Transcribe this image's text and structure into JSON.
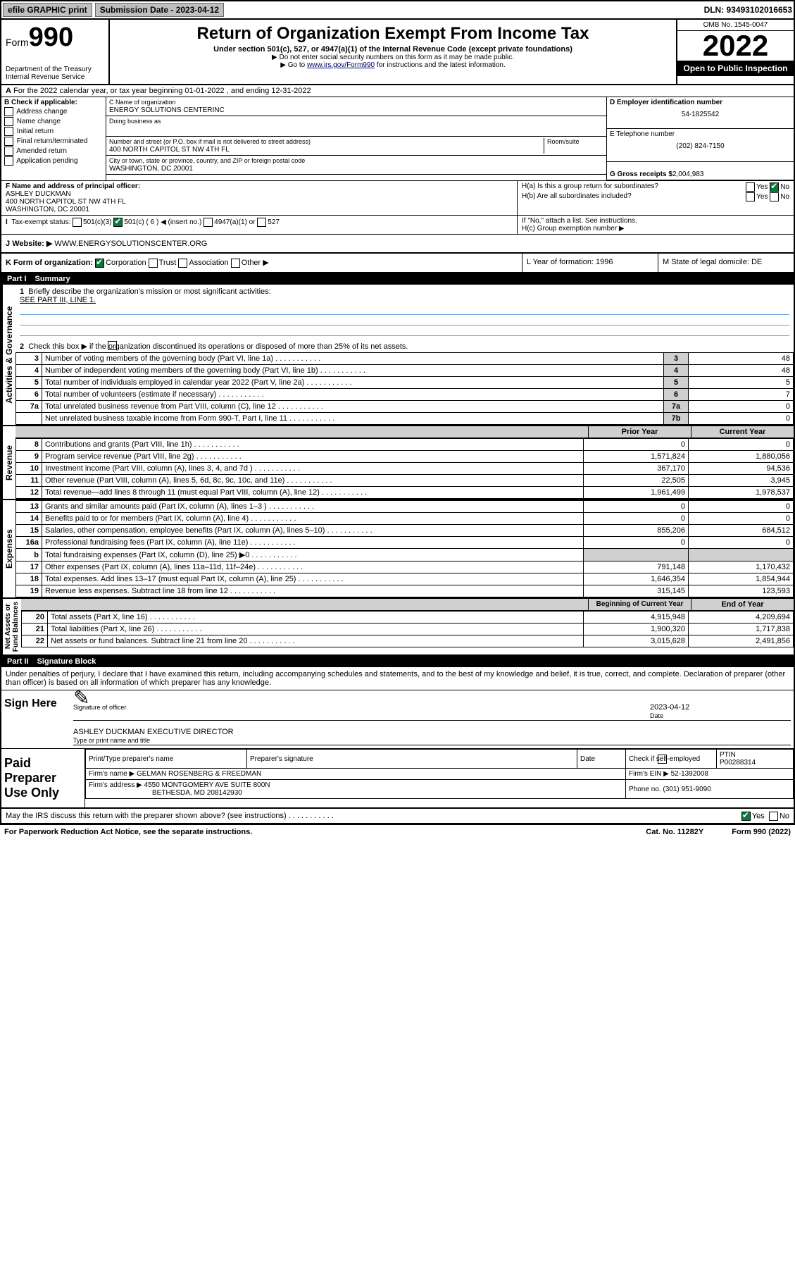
{
  "top": {
    "efile": "efile GRAPHIC print",
    "subLabel": "Submission Date - 2023-04-12",
    "dln": "DLN: 93493102016653"
  },
  "hdr": {
    "formWord": "Form",
    "formNum": "990",
    "dept": "Department of the Treasury\nInternal Revenue Service",
    "title": "Return of Organization Exempt From Income Tax",
    "sub": "Under section 501(c), 527, or 4947(a)(1) of the Internal Revenue Code (except private foundations)",
    "line1": "▶ Do not enter social security numbers on this form as it may be made public.",
    "line2a": "▶ Go to ",
    "line2link": "www.irs.gov/Form990",
    "line2b": " for instructions and the latest information.",
    "omb": "OMB No. 1545-0047",
    "year": "2022",
    "open": "Open to Public Inspection"
  },
  "rowA": {
    "text": "For the 2022 calendar year, or tax year beginning 01-01-2022    , and ending 12-31-2022",
    "a": "A"
  },
  "colB": {
    "hdr": "B Check if applicable:",
    "items": [
      "Address change",
      "Name change",
      "Initial return",
      "Final return/terminated",
      "Amended return",
      "Application pending"
    ]
  },
  "colC": {
    "nameLbl": "C Name of organization",
    "name": "ENERGY SOLUTIONS CENTERINC",
    "dba": "Doing business as",
    "streetLbl": "Number and street (or P.O. box if mail is not delivered to street address)",
    "roomLbl": "Room/suite",
    "street": "400 NORTH CAPITOL ST NW 4TH FL",
    "cityLbl": "City or town, state or province, country, and ZIP or foreign postal code",
    "city": "WASHINGTON, DC  20001",
    "fLbl": "F  Name and address of principal officer:",
    "fName": "ASHLEY DUCKMAN",
    "fAddr1": "400 NORTH CAPITOL ST NW 4TH FL",
    "fAddr2": "WASHINGTON, DC  20001"
  },
  "colD": {
    "einLbl": "D Employer identification number",
    "ein": "54-1825542",
    "telLbl": "E Telephone number",
    "tel": "(202) 824-7150",
    "grossLbl": "G Gross receipts $",
    "gross": "2,004,983"
  },
  "rowH": {
    "ha": "H(a)  Is this a group return for subordinates?",
    "yes": "Yes",
    "no": "No",
    "hb": "H(b)  Are all subordinates included?",
    "hbNote": "If \"No,\" attach a list. See instructions.",
    "hc": "H(c)  Group exemption number ▶"
  },
  "rowI": {
    "lbl": "Tax-exempt status:",
    "o1": "501(c)(3)",
    "o2": "501(c) ( 6 ) ◀ (insert no.)",
    "o3": "4947(a)(1) or",
    "o4": "527"
  },
  "rowJ": {
    "lbl": "Website: ▶",
    "val": " WWW.ENERGYSOLUTIONSCENTER.ORG",
    "j": "J"
  },
  "rowK": {
    "lbl": "K Form of organization:",
    "o1": "Corporation",
    "o2": "Trust",
    "o3": "Association",
    "o4": "Other ▶",
    "l": "L Year of formation: 1996",
    "m": "M State of legal domicile: DE"
  },
  "part1": {
    "num": "Part I",
    "title": "Summary"
  },
  "summary": {
    "l1": "Briefly describe the organization's mission or most significant activities:",
    "l1v": "SEE PART III, LINE 1.",
    "l2": "Check this box ▶            if the organization discontinued its operations or disposed of more than 25% of its net assets.",
    "rows": [
      {
        "n": "3",
        "d": "Number of voting members of the governing body (Part VI, line 1a)",
        "b": "3",
        "v": "48"
      },
      {
        "n": "4",
        "d": "Number of independent voting members of the governing body (Part VI, line 1b)",
        "b": "4",
        "v": "48"
      },
      {
        "n": "5",
        "d": "Total number of individuals employed in calendar year 2022 (Part V, line 2a)",
        "b": "5",
        "v": "5"
      },
      {
        "n": "6",
        "d": "Total number of volunteers (estimate if necessary)",
        "b": "6",
        "v": "7"
      },
      {
        "n": "7a",
        "d": "Total unrelated business revenue from Part VIII, column (C), line 12",
        "b": "7a",
        "v": "0"
      },
      {
        "n": "",
        "d": "Net unrelated business taxable income from Form 990-T, Part I, line 11",
        "b": "7b",
        "v": "0"
      }
    ],
    "hdrPrior": "Prior Year",
    "hdrCurr": "Current Year",
    "hdrBeg": "Beginning of Current Year",
    "hdrEnd": "End of Year",
    "rev": [
      {
        "n": "8",
        "d": "Contributions and grants (Part VIII, line 1h)",
        "p": "0",
        "c": "0"
      },
      {
        "n": "9",
        "d": "Program service revenue (Part VIII, line 2g)",
        "p": "1,571,824",
        "c": "1,880,056"
      },
      {
        "n": "10",
        "d": "Investment income (Part VIII, column (A), lines 3, 4, and 7d )",
        "p": "367,170",
        "c": "94,536"
      },
      {
        "n": "11",
        "d": "Other revenue (Part VIII, column (A), lines 5, 6d, 8c, 9c, 10c, and 11e)",
        "p": "22,505",
        "c": "3,945"
      },
      {
        "n": "12",
        "d": "Total revenue—add lines 8 through 11 (must equal Part VIII, column (A), line 12)",
        "p": "1,961,499",
        "c": "1,978,537"
      }
    ],
    "exp": [
      {
        "n": "13",
        "d": "Grants and similar amounts paid (Part IX, column (A), lines 1–3 )",
        "p": "0",
        "c": "0"
      },
      {
        "n": "14",
        "d": "Benefits paid to or for members (Part IX, column (A), line 4)",
        "p": "0",
        "c": "0"
      },
      {
        "n": "15",
        "d": "Salaries, other compensation, employee benefits (Part IX, column (A), lines 5–10)",
        "p": "855,206",
        "c": "684,512"
      },
      {
        "n": "16a",
        "d": "Professional fundraising fees (Part IX, column (A), line 11e)",
        "p": "0",
        "c": "0"
      },
      {
        "n": "b",
        "d": "Total fundraising expenses (Part IX, column (D), line 25) ▶0",
        "p": "",
        "c": "",
        "shade": true
      },
      {
        "n": "17",
        "d": "Other expenses (Part IX, column (A), lines 11a–11d, 11f–24e)",
        "p": "791,148",
        "c": "1,170,432"
      },
      {
        "n": "18",
        "d": "Total expenses. Add lines 13–17 (must equal Part IX, column (A), line 25)",
        "p": "1,646,354",
        "c": "1,854,944"
      },
      {
        "n": "19",
        "d": "Revenue less expenses. Subtract line 18 from line 12",
        "p": "315,145",
        "c": "123,593"
      }
    ],
    "net": [
      {
        "n": "20",
        "d": "Total assets (Part X, line 16)",
        "p": "4,915,948",
        "c": "4,209,694"
      },
      {
        "n": "21",
        "d": "Total liabilities (Part X, line 26)",
        "p": "1,900,320",
        "c": "1,717,838"
      },
      {
        "n": "22",
        "d": "Net assets or fund balances. Subtract line 21 from line 20",
        "p": "3,015,628",
        "c": "2,491,856"
      }
    ],
    "tabs": {
      "gov": "Activities & Governance",
      "rev": "Revenue",
      "exp": "Expenses",
      "net": "Net Assets or\nFund Balances"
    }
  },
  "part2": {
    "num": "Part II",
    "title": "Signature Block"
  },
  "sig": {
    "decl": "Under penalties of perjury, I declare that I have examined this return, including accompanying schedules and statements, and to the best of my knowledge and belief, it is true, correct, and complete. Declaration of preparer (other than officer) is based on all information of which preparer has any knowledge.",
    "signHere": "Sign Here",
    "sigOff": "Signature of officer",
    "date": "Date",
    "dateVal": "2023-04-12",
    "typed": "ASHLEY DUCKMAN  EXECUTIVE DIRECTOR",
    "typedLbl": "Type or print name and title",
    "paid": "Paid Preparer Use Only",
    "pName": "Print/Type preparer's name",
    "pSig": "Preparer's signature",
    "pDate": "Date",
    "selfEmp": "Check           if self-employed",
    "ptin": "PTIN",
    "ptinVal": "P00288314",
    "firmName": "Firm's name    ▶",
    "firmVal": "GELMAN ROSENBERG & FREEDMAN",
    "firmEin": "Firm's EIN ▶",
    "firmEinVal": "52-1392008",
    "firmAddr": "Firm's address ▶",
    "firmAddrVal": "4550 MONTGOMERY AVE SUITE 800N",
    "firmAddr2": "BETHESDA, MD  208142930",
    "phone": "Phone no.",
    "phoneVal": "(301) 951-9090",
    "discuss": "May the IRS discuss this return with the preparer shown above? (see instructions)"
  },
  "footer": {
    "l": "For Paperwork Reduction Act Notice, see the separate instructions.",
    "m": "Cat. No. 11282Y",
    "r": "Form 990 (2022)"
  }
}
